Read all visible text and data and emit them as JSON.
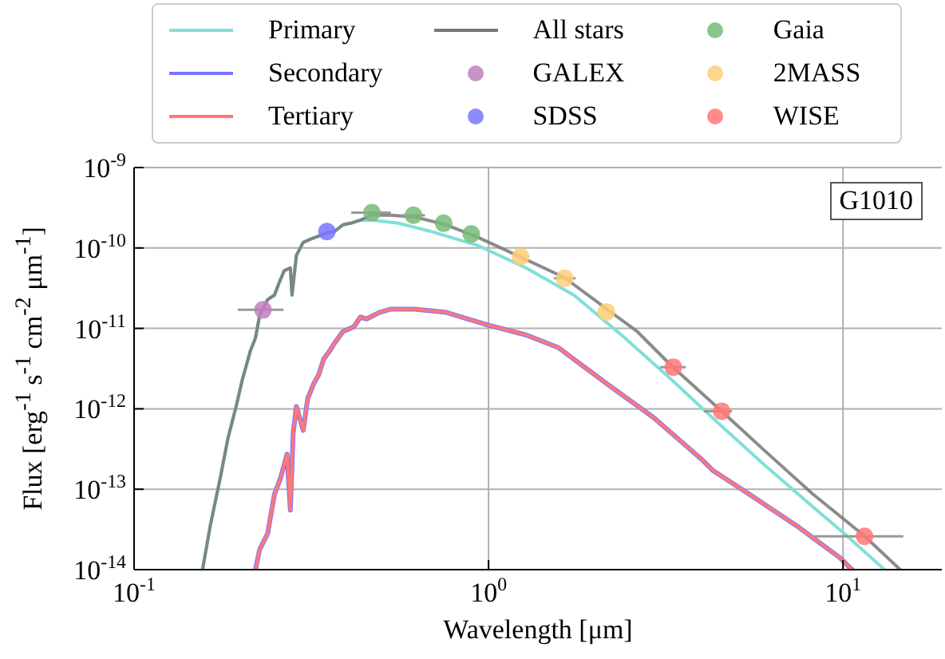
{
  "chart_data": {
    "type": "line",
    "xlabel": "Wavelength [μm]",
    "ylabel": "Flux [erg$^{-1}$ s$^{-1}$ cm$^{-2}$ μm$^{-1}$]",
    "log": "xy",
    "grid": true,
    "legend": "top",
    "xlim": [
      0.1,
      19
    ],
    "xticks": [
      {
        "value": 0.1,
        "label": "10$^{-1}$"
      },
      {
        "value": 1,
        "label": "10$^{0}$"
      },
      {
        "value": 10,
        "label": "10$^{1}$"
      }
    ],
    "ylim": [
      1e-14,
      1e-09
    ],
    "yticks": [
      {
        "value": 1e-14,
        "label": "10$^{-14}$"
      },
      {
        "value": 1e-13,
        "label": "10$^{-13}$"
      },
      {
        "value": 1e-12,
        "label": "10$^{-12}$"
      },
      {
        "value": 1e-11,
        "label": "10$^{-11}$"
      },
      {
        "value": 1e-10,
        "label": "10$^{-10}$"
      },
      {
        "value": 1e-09,
        "label": "10$^{-9}$"
      }
    ],
    "annotations": [
      "G1010"
    ],
    "series": [
      {
        "name": "Primary",
        "marker": "none",
        "color": "#7fe0d8",
        "x": [
          0.156,
          0.164,
          0.175,
          0.184,
          0.194,
          0.202,
          0.213,
          0.22,
          0.226,
          0.238,
          0.249,
          0.256,
          0.265,
          0.276,
          0.279,
          0.287,
          0.3,
          0.315,
          0.332,
          0.35,
          0.368,
          0.388,
          0.408,
          0.435,
          0.467,
          0.557,
          0.686,
          0.935,
          1.275,
          1.74,
          2.37,
          3.24,
          4.42,
          6.02,
          8.22,
          10.1,
          13.1
        ],
        "values": [
          1e-14,
          3.5e-14,
          1.38e-13,
          4.3e-13,
          1.07e-12,
          2.3e-12,
          5.3e-12,
          7.6e-12,
          1.44e-11,
          2.27e-11,
          2.6e-11,
          3.6e-11,
          5.2e-11,
          5.65e-11,
          2.6e-11,
          8.1e-11,
          1.17e-10,
          1.29e-10,
          1.41e-10,
          1.54e-10,
          1.61e-10,
          1.94e-10,
          2.03e-10,
          2.22e-10,
          2.22e-10,
          2.03e-10,
          1.61e-10,
          1.07e-10,
          5.65e-11,
          2.6e-11,
          8.3e-12,
          2.43e-12,
          6.8e-13,
          1.98e-13,
          6.05e-14,
          2.8e-14,
          1e-14
        ]
      },
      {
        "name": "Secondary",
        "marker": "none",
        "color": "#7777ff",
        "x": [
          0.22,
          0.226,
          0.238,
          0.249,
          0.259,
          0.27,
          0.276,
          0.281,
          0.287,
          0.3,
          0.309,
          0.322,
          0.332,
          0.343,
          0.357,
          0.368,
          0.388,
          0.417,
          0.435,
          0.453,
          0.492,
          0.529,
          0.618,
          0.76,
          0.995,
          1.275,
          1.57,
          2.14,
          2.92,
          3.98,
          4.28,
          5.43,
          7.41,
          9.79,
          10.6
        ],
        "values": [
          1e-14,
          1.77e-14,
          2.8e-14,
          8.7e-14,
          1.38e-13,
          2.73e-13,
          5.5e-14,
          4.9e-13,
          1.07e-12,
          5.4e-13,
          1.35e-12,
          2.1e-12,
          2.67e-12,
          4.2e-12,
          5.3e-12,
          6.6e-12,
          9.1e-12,
          1.05e-11,
          1.38e-11,
          1.31e-11,
          1.58e-11,
          1.73e-11,
          1.73e-11,
          1.58e-11,
          1.1e-11,
          8.3e-12,
          5.8e-12,
          2.1e-12,
          7.8e-13,
          2.38e-13,
          1.73e-13,
          8.7e-14,
          3.5e-14,
          1.41e-14,
          1e-14
        ]
      },
      {
        "name": "Tertiary",
        "marker": "none",
        "color": "#ff7777",
        "x": [
          0.22,
          0.226,
          0.238,
          0.249,
          0.259,
          0.27,
          0.276,
          0.281,
          0.287,
          0.3,
          0.309,
          0.322,
          0.332,
          0.343,
          0.357,
          0.368,
          0.388,
          0.417,
          0.435,
          0.453,
          0.492,
          0.529,
          0.618,
          0.76,
          0.995,
          1.275,
          1.57,
          2.14,
          2.92,
          3.98,
          4.28,
          5.43,
          7.41,
          9.79,
          10.6
        ],
        "values": [
          1e-14,
          1.77e-14,
          2.8e-14,
          8.7e-14,
          1.38e-13,
          2.73e-13,
          5.5e-14,
          4.9e-13,
          1.07e-12,
          5.4e-13,
          1.35e-12,
          2.1e-12,
          2.67e-12,
          4.2e-12,
          5.3e-12,
          6.6e-12,
          9.1e-12,
          1.05e-11,
          1.38e-11,
          1.31e-11,
          1.58e-11,
          1.73e-11,
          1.73e-11,
          1.58e-11,
          1.1e-11,
          8.3e-12,
          5.8e-12,
          2.1e-12,
          7.8e-13,
          2.38e-13,
          1.73e-13,
          8.7e-14,
          3.5e-14,
          1.41e-14,
          1e-14
        ]
      },
      {
        "name": "All stars",
        "marker": "none",
        "color": "#777777",
        "x": [
          0.156,
          0.164,
          0.175,
          0.184,
          0.194,
          0.202,
          0.213,
          0.22,
          0.226,
          0.238,
          0.249,
          0.256,
          0.265,
          0.276,
          0.279,
          0.287,
          0.3,
          0.315,
          0.332,
          0.35,
          0.368,
          0.388,
          0.408,
          0.435,
          0.467,
          0.529,
          0.618,
          0.76,
          0.935,
          1.224,
          1.635,
          2.16,
          2.63,
          3.3,
          4.55,
          6.02,
          8.22,
          11.44,
          14.5
        ],
        "values": [
          1e-14,
          3.5e-14,
          1.38e-13,
          4.3e-13,
          1.07e-12,
          2.3e-12,
          5.3e-12,
          7.6e-12,
          1.44e-11,
          2.27e-11,
          2.6e-11,
          3.6e-11,
          5.2e-11,
          5.65e-11,
          2.6e-11,
          8.1e-11,
          1.17e-10,
          1.29e-10,
          1.41e-10,
          1.54e-10,
          1.61e-10,
          1.94e-10,
          2.03e-10,
          2.22e-10,
          2.55e-10,
          2.55e-10,
          2.43e-10,
          1.94e-10,
          1.35e-10,
          7.8e-11,
          4.3e-11,
          1.73e-11,
          9.1e-12,
          3.35e-12,
          9.3e-13,
          3e-13,
          8.7e-14,
          2.67e-14,
          1e-14
        ]
      },
      {
        "name": "GALEX",
        "type": "scatter",
        "marker": "circle",
        "color": "#bf7fbf",
        "x": [
          0.231
        ],
        "values": [
          1.7e-11
        ],
        "xerrors": [
          [
            0.196,
            0.264
          ]
        ]
      },
      {
        "name": "SDSS",
        "type": "scatter",
        "marker": "circle",
        "color": "#7777ff",
        "x": [
          0.35
        ],
        "values": [
          1.6e-10
        ],
        "xerrors": [
          null
        ]
      },
      {
        "name": "Gaia",
        "type": "scatter",
        "marker": "circle",
        "color": "#77bb77",
        "x": [
          0.469,
          0.614,
          0.747,
          0.894
        ],
        "values": [
          2.75e-10,
          2.55e-10,
          2.03e-10,
          1.49e-10
        ],
        "xerrors": [
          [
            0.41,
            0.53
          ],
          [
            0.568,
            0.662
          ],
          null,
          null
        ]
      },
      {
        "name": "2MASS",
        "type": "scatter",
        "marker": "circle",
        "color": "#ffcc77",
        "x": [
          1.232,
          1.64,
          2.15
        ],
        "values": [
          7.8e-11,
          4.2e-11,
          1.6e-11
        ],
        "xerrors": [
          null,
          [
            1.53,
            1.76
          ],
          null
        ]
      },
      {
        "name": "WISE",
        "type": "scatter",
        "marker": "circle",
        "color": "#ff7777",
        "x": [
          3.32,
          4.55,
          11.5
        ],
        "values": [
          3.3e-12,
          9.3e-13,
          2.6e-14
        ],
        "xerrors": [
          [
            3.05,
            3.6
          ],
          [
            4.05,
            4.86
          ],
          [
            8.3,
            14.8
          ]
        ]
      }
    ]
  }
}
